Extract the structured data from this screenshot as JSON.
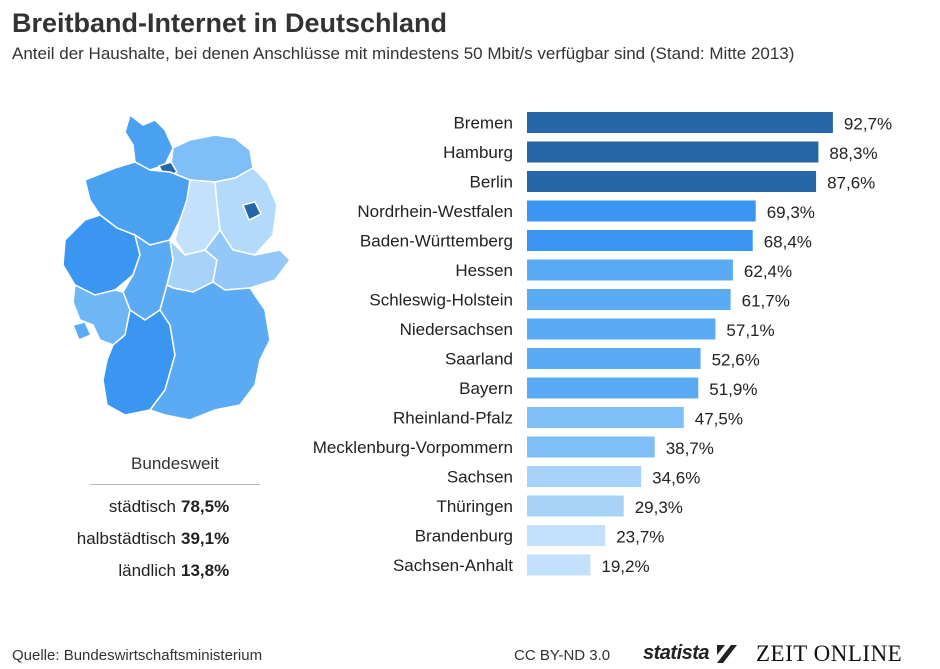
{
  "title": "Breitband-Internet in Deutschland",
  "subtitle": "Anteil der Haushalte, bei denen Anschlüsse mit mindestens 50 Mbit/s verfügbar sind (Stand: Mitte 2013)",
  "national": {
    "title": "Bundesweit",
    "rows": [
      {
        "label": "städtisch",
        "value": "78,5%"
      },
      {
        "label": "halbstädtisch",
        "value": "39,1%"
      },
      {
        "label": "ländlich",
        "value": "13,8%"
      }
    ]
  },
  "colors": {
    "tier1": "#2566a8",
    "tier2": "#3a96f0",
    "tier3": "#5aabf4",
    "tier4": "#7fbff7",
    "tier5": "#a7d3fa",
    "tier6": "#c3e0fc"
  },
  "chart_data": {
    "type": "bar",
    "orientation": "horizontal",
    "categories": [
      "Bremen",
      "Hamburg",
      "Berlin",
      "Nordrhein-Westfalen",
      "Baden-Württemberg",
      "Hessen",
      "Schleswig-Holstein",
      "Niedersachsen",
      "Saarland",
      "Bayern",
      "Rheinland-Pfalz",
      "Mecklenburg-Vorpommern",
      "Sachsen",
      "Thüringen",
      "Brandenburg",
      "Sachsen-Anhalt"
    ],
    "values": [
      92.7,
      88.3,
      87.6,
      69.3,
      68.4,
      62.4,
      61.7,
      57.1,
      52.6,
      51.9,
      47.5,
      38.7,
      34.6,
      29.3,
      23.7,
      19.2
    ],
    "value_labels": [
      "92,7%",
      "88,3%",
      "87,6%",
      "69,3%",
      "68,4%",
      "62,4%",
      "61,7%",
      "57,1%",
      "52,6%",
      "51,9%",
      "47,5%",
      "38,7%",
      "34,6%",
      "29,3%",
      "23,7%",
      "19,2%"
    ],
    "xlim": [
      0,
      100
    ],
    "unit": "%",
    "title": "Breitband-Internet in Deutschland",
    "xlabel": "",
    "ylabel": "",
    "grid": false,
    "legend": "none"
  },
  "footer": {
    "source": "Quelle: Bundeswirtschaftsministerium",
    "license": "CC BY-ND 3.0",
    "brand_statista": "statista",
    "brand_zeit": "ZEIT ONLINE"
  }
}
